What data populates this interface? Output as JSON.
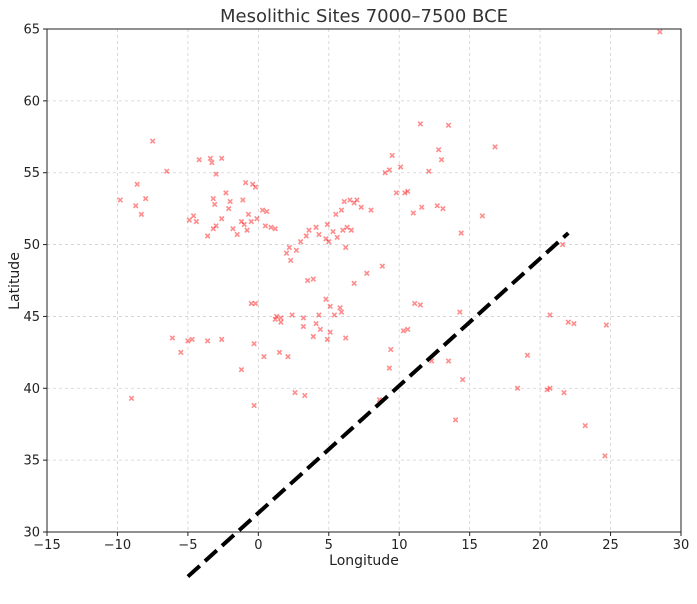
{
  "chart_data": {
    "type": "scatter",
    "title": "Mesolithic Sites 7000–7500 BCE",
    "xlabel": "Longitude",
    "ylabel": "Latitude",
    "xlim": [
      -15,
      30
    ],
    "ylim": [
      30,
      65
    ],
    "xticks": [
      -15,
      -10,
      -5,
      0,
      5,
      10,
      15,
      20,
      25,
      30
    ],
    "xtick_labels": [
      "−15",
      "−10",
      "−5",
      "0",
      "5",
      "10",
      "15",
      "20",
      "25",
      "30"
    ],
    "yticks": [
      30,
      35,
      40,
      45,
      50,
      55,
      60,
      65
    ],
    "ytick_labels": [
      "30",
      "35",
      "40",
      "45",
      "50",
      "55",
      "60",
      "65"
    ],
    "grid": true,
    "marker": "x",
    "marker_color": "#ff0000",
    "points": [
      [
        28.5,
        64.8
      ],
      [
        -7.5,
        57.2
      ],
      [
        -4.2,
        55.9
      ],
      [
        -3.4,
        56.0
      ],
      [
        -2.6,
        56.0
      ],
      [
        -6.5,
        55.1
      ],
      [
        -8.6,
        54.2
      ],
      [
        -3.0,
        54.9
      ],
      [
        -9.8,
        53.1
      ],
      [
        -8.0,
        53.2
      ],
      [
        -8.7,
        52.7
      ],
      [
        -8.3,
        52.1
      ],
      [
        -3.3,
        55.7
      ],
      [
        -3.2,
        53.2
      ],
      [
        -2.3,
        53.6
      ],
      [
        -2.0,
        53.0
      ],
      [
        -1.1,
        53.1
      ],
      [
        -0.9,
        54.3
      ],
      [
        -0.4,
        54.2
      ],
      [
        -0.2,
        54.0
      ],
      [
        -2.1,
        52.5
      ],
      [
        -3.1,
        52.8
      ],
      [
        -4.6,
        52.0
      ],
      [
        -4.9,
        51.7
      ],
      [
        -4.4,
        51.6
      ],
      [
        -3.0,
        51.3
      ],
      [
        -3.2,
        51.1
      ],
      [
        -2.6,
        51.8
      ],
      [
        -1.8,
        51.1
      ],
      [
        -1.0,
        51.4
      ],
      [
        -0.8,
        51.0
      ],
      [
        -0.5,
        51.6
      ],
      [
        -0.1,
        51.8
      ],
      [
        0.3,
        52.4
      ],
      [
        0.6,
        52.3
      ],
      [
        -0.7,
        52.1
      ],
      [
        -1.2,
        51.6
      ],
      [
        -1.5,
        50.7
      ],
      [
        -3.6,
        50.6
      ],
      [
        0.5,
        51.3
      ],
      [
        1.2,
        51.1
      ],
      [
        0.9,
        51.2
      ],
      [
        2.2,
        49.8
      ],
      [
        2.0,
        49.4
      ],
      [
        2.3,
        48.9
      ],
      [
        2.7,
        49.6
      ],
      [
        3.0,
        50.2
      ],
      [
        3.4,
        50.6
      ],
      [
        3.6,
        51.0
      ],
      [
        4.1,
        51.2
      ],
      [
        4.3,
        50.7
      ],
      [
        4.8,
        50.4
      ],
      [
        5.0,
        50.2
      ],
      [
        5.3,
        50.9
      ],
      [
        5.6,
        50.5
      ],
      [
        6.0,
        51.0
      ],
      [
        6.3,
        51.2
      ],
      [
        6.6,
        51.0
      ],
      [
        4.9,
        51.4
      ],
      [
        5.5,
        52.1
      ],
      [
        5.9,
        52.4
      ],
      [
        6.1,
        53.0
      ],
      [
        6.5,
        53.1
      ],
      [
        6.8,
        52.9
      ],
      [
        7.0,
        53.1
      ],
      [
        7.3,
        52.6
      ],
      [
        8.0,
        52.4
      ],
      [
        9.0,
        55.0
      ],
      [
        9.3,
        55.2
      ],
      [
        9.5,
        56.2
      ],
      [
        10.1,
        55.4
      ],
      [
        9.8,
        53.6
      ],
      [
        10.4,
        53.6
      ],
      [
        10.6,
        53.7
      ],
      [
        11.0,
        52.2
      ],
      [
        11.6,
        52.6
      ],
      [
        12.1,
        55.1
      ],
      [
        11.5,
        58.4
      ],
      [
        12.8,
        56.6
      ],
      [
        13.0,
        55.9
      ],
      [
        13.5,
        58.3
      ],
      [
        12.7,
        52.7
      ],
      [
        13.1,
        52.5
      ],
      [
        15.9,
        52.0
      ],
      [
        16.8,
        56.8
      ],
      [
        14.4,
        50.8
      ],
      [
        6.2,
        49.8
      ],
      [
        7.7,
        48.0
      ],
      [
        8.8,
        48.5
      ],
      [
        6.8,
        47.3
      ],
      [
        3.5,
        47.5
      ],
      [
        3.9,
        47.6
      ],
      [
        4.3,
        45.1
      ],
      [
        4.8,
        46.2
      ],
      [
        5.1,
        45.7
      ],
      [
        5.8,
        45.6
      ],
      [
        5.9,
        45.3
      ],
      [
        5.4,
        45.1
      ],
      [
        3.2,
        44.9
      ],
      [
        4.1,
        44.5
      ],
      [
        3.2,
        44.3
      ],
      [
        2.4,
        45.1
      ],
      [
        1.6,
        44.6
      ],
      [
        1.3,
        45.0
      ],
      [
        1.2,
        44.8
      ],
      [
        1.6,
        44.9
      ],
      [
        -0.5,
        45.9
      ],
      [
        -0.2,
        45.9
      ],
      [
        4.4,
        44.1
      ],
      [
        5.1,
        43.9
      ],
      [
        4.9,
        43.4
      ],
      [
        3.9,
        43.6
      ],
      [
        6.2,
        43.5
      ],
      [
        1.5,
        42.5
      ],
      [
        2.1,
        42.2
      ],
      [
        0.4,
        42.2
      ],
      [
        -0.3,
        43.1
      ],
      [
        -2.6,
        43.4
      ],
      [
        -3.6,
        43.3
      ],
      [
        -4.7,
        43.4
      ],
      [
        -5.0,
        43.3
      ],
      [
        -6.1,
        43.5
      ],
      [
        -5.5,
        42.5
      ],
      [
        -1.2,
        41.3
      ],
      [
        -9.0,
        39.3
      ],
      [
        -0.3,
        38.8
      ],
      [
        2.6,
        39.7
      ],
      [
        3.3,
        39.5
      ],
      [
        9.3,
        41.4
      ],
      [
        9.4,
        42.7
      ],
      [
        8.6,
        39.2
      ],
      [
        10.3,
        44.0
      ],
      [
        10.6,
        44.1
      ],
      [
        11.1,
        45.9
      ],
      [
        11.5,
        45.8
      ],
      [
        12.3,
        41.9
      ],
      [
        13.5,
        41.9
      ],
      [
        14.3,
        45.3
      ],
      [
        14.5,
        40.6
      ],
      [
        14.0,
        37.8
      ],
      [
        18.4,
        40.0
      ],
      [
        19.1,
        42.3
      ],
      [
        20.5,
        39.9
      ],
      [
        20.7,
        40.0
      ],
      [
        20.7,
        45.1
      ],
      [
        21.6,
        50.0
      ],
      [
        21.7,
        39.7
      ],
      [
        22.0,
        44.6
      ],
      [
        22.4,
        44.5
      ],
      [
        23.2,
        37.4
      ],
      [
        24.6,
        35.3
      ],
      [
        24.7,
        44.4
      ]
    ],
    "overlay_line": {
      "style": "dashed",
      "color": "#000000",
      "from": [
        -5.0,
        26.9
      ],
      "to": [
        22.0,
        50.8
      ]
    }
  }
}
